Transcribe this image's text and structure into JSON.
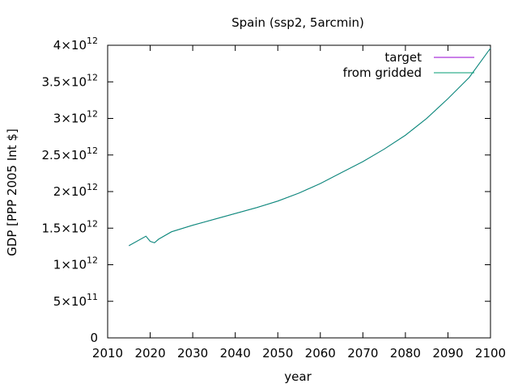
{
  "chart_data": {
    "type": "line",
    "title": "Spain (ssp2, 5arcmin)",
    "xlabel": "year",
    "ylabel": "GDP [PPP 2005 Int $]",
    "xlim": [
      2010,
      2100
    ],
    "ylim": [
      0,
      4000000000000.0
    ],
    "x_ticks": [
      2010,
      2020,
      2030,
      2040,
      2050,
      2060,
      2070,
      2080,
      2090,
      2100
    ],
    "x_tick_labels": [
      "2010",
      "2020",
      "2030",
      "2040",
      "2050",
      "2060",
      "2070",
      "2080",
      "2090",
      "2100"
    ],
    "y_ticks": [
      0,
      500000000000.0,
      1000000000000.0,
      1500000000000.0,
      2000000000000.0,
      2500000000000.0,
      3000000000000.0,
      3500000000000.0,
      4000000000000.0
    ],
    "y_tick_labels": [
      {
        "mantissa": "0",
        "exponent": ""
      },
      {
        "mantissa": "5×10",
        "exponent": "11"
      },
      {
        "mantissa": "1×10",
        "exponent": "12"
      },
      {
        "mantissa": "1.5×10",
        "exponent": "12"
      },
      {
        "mantissa": "2×10",
        "exponent": "12"
      },
      {
        "mantissa": "2.5×10",
        "exponent": "12"
      },
      {
        "mantissa": "3×10",
        "exponent": "12"
      },
      {
        "mantissa": "3.5×10",
        "exponent": "12"
      },
      {
        "mantissa": "4×10",
        "exponent": "12"
      }
    ],
    "grid": false,
    "legend_position": "top-right",
    "x": [
      2015,
      2019,
      2020,
      2021,
      2022,
      2025,
      2030,
      2035,
      2040,
      2045,
      2050,
      2055,
      2060,
      2065,
      2070,
      2075,
      2080,
      2085,
      2090,
      2095,
      2100
    ],
    "series": [
      {
        "name": "target",
        "color": "#9400d3",
        "values": [
          1260000000000.0,
          1390000000000.0,
          1320000000000.0,
          1300000000000.0,
          1350000000000.0,
          1450000000000.0,
          1540000000000.0,
          1620000000000.0,
          1700000000000.0,
          1780000000000.0,
          1870000000000.0,
          1980000000000.0,
          2110000000000.0,
          2260000000000.0,
          2410000000000.0,
          2580000000000.0,
          2770000000000.0,
          3000000000000.0,
          3270000000000.0,
          3560000000000.0,
          3960000000000.0
        ]
      },
      {
        "name": "from gridded",
        "color": "#009e73",
        "values": [
          1260000000000.0,
          1390000000000.0,
          1320000000000.0,
          1300000000000.0,
          1350000000000.0,
          1450000000000.0,
          1540000000000.0,
          1620000000000.0,
          1700000000000.0,
          1780000000000.0,
          1870000000000.0,
          1980000000000.0,
          2110000000000.0,
          2260000000000.0,
          2410000000000.0,
          2580000000000.0,
          2770000000000.0,
          3000000000000.0,
          3270000000000.0,
          3560000000000.0,
          3960000000000.0
        ]
      }
    ]
  }
}
